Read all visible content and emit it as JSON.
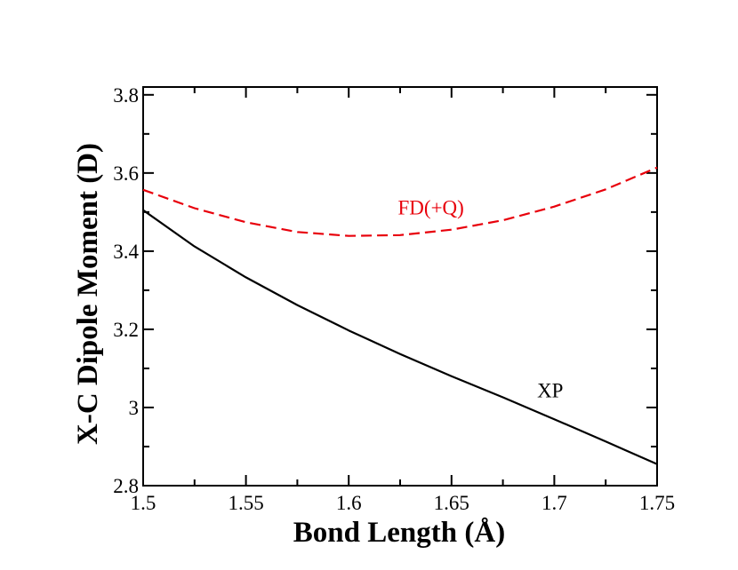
{
  "chart_data": {
    "type": "line",
    "title": "",
    "xlabel": "Bond Length (Å)",
    "ylabel": "X-C Dipole Moment (D)",
    "xlim": [
      1.5,
      1.75
    ],
    "ylim": [
      2.8,
      3.82
    ],
    "xticks": [
      1.5,
      1.55,
      1.6,
      1.65,
      1.7,
      1.75
    ],
    "xtick_labels": [
      "1.5",
      "1.55",
      "1.6",
      "1.65",
      "1.7",
      "1.75"
    ],
    "yticks": [
      2.8,
      3.0,
      3.2,
      3.4,
      3.6,
      3.8
    ],
    "ytick_labels": [
      "2.8",
      "3",
      "3.2",
      "3.4",
      "3.6",
      "3.8"
    ],
    "grid": false,
    "legend": "none",
    "series": [
      {
        "name": "XP",
        "label": "XP",
        "color": "#000000",
        "dash": "solid",
        "label_anchor": {
          "x": 1.698,
          "y": 3.026
        },
        "x": [
          1.5,
          1.525,
          1.55,
          1.575,
          1.6,
          1.625,
          1.65,
          1.675,
          1.7,
          1.725,
          1.75
        ],
        "y": [
          3.505,
          3.412,
          3.333,
          3.262,
          3.197,
          3.137,
          3.08,
          3.026,
          2.97,
          2.913,
          2.855
        ]
      },
      {
        "name": "FD(+Q)",
        "label": "FD(+Q)",
        "color": "#e8000b",
        "dash": "dashed",
        "label_anchor": {
          "x": 1.64,
          "y": 3.494
        },
        "x": [
          1.5,
          1.525,
          1.55,
          1.575,
          1.6,
          1.625,
          1.65,
          1.675,
          1.7,
          1.725,
          1.75
        ],
        "y": [
          3.557,
          3.51,
          3.474,
          3.449,
          3.439,
          3.441,
          3.455,
          3.479,
          3.514,
          3.558,
          3.614
        ]
      }
    ]
  }
}
